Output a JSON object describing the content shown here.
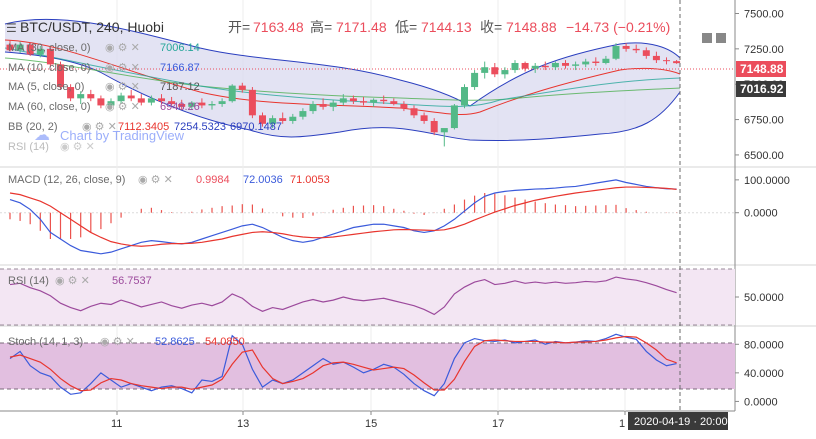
{
  "header": {
    "symbol": "BTC/USDT, 240, Huobi",
    "open_label": "开=",
    "open": "7163.48",
    "high_label": "高=",
    "high": "7171.48",
    "low_label": "低=",
    "low": "7144.13",
    "close_label": "收=",
    "close": "7148.88",
    "change": "−14.73 (−0.21%)"
  },
  "indicators": {
    "ma30": {
      "label": "MA (30, close, 0)",
      "value": "7006.14"
    },
    "ma10": {
      "label": "MA (10, close, 0)",
      "value": "7166.87"
    },
    "ma5": {
      "label": "MA (5, close, 0)",
      "value": "7187.12"
    },
    "ma60": {
      "label": "MA (60, close, 0)",
      "value": "6948.26"
    },
    "bb": {
      "label": "BB (20, 2)",
      "basis": "7112.3405",
      "upper": "7254.5323",
      "lower": "6970.1487"
    },
    "rsi_hidden": {
      "label": "RSI (14)"
    },
    "macd": {
      "label": "MACD (12, 26, close, 9)",
      "hist": "0.9984",
      "macd": "72.0036",
      "signal": "71.0053"
    },
    "rsi": {
      "label": "RSI (14)",
      "value": "56.7537"
    },
    "stoch": {
      "label": "Stoch (14, 1, 3)",
      "k": "52.8625",
      "d": "54.0850"
    }
  },
  "watermark": "Chart by TradingView",
  "price_labels": {
    "last": "7148.88",
    "ma": "7016.92"
  },
  "time_label": "2020-04-19 · 20:00",
  "colors": {
    "up": "#53b987",
    "down": "#eb4d5c",
    "macd": "#3b5bdb",
    "signal": "#e8352e",
    "bb_fill": "#dcdcf0",
    "rsi_fill": "#f3e6f3",
    "stoch_fill": "#e2bfe0",
    "stoch_k": "#3b5bdb",
    "stoch_d": "#e8352e",
    "rsi_line": "#9c4a9c"
  },
  "chart_data": [
    {
      "type": "candlestick",
      "title": "BTC/USDT, 240, Huobi",
      "x_ticks": [
        "11",
        "13",
        "15",
        "17",
        "1"
      ],
      "y_ticks": [
        "7500.00",
        "7250.00",
        "7000.00",
        "6750.00",
        "6500.00"
      ],
      "ylim": [
        6450,
        7560
      ],
      "candles": [
        [
          7280,
          7310,
          7230,
          7240
        ],
        [
          7240,
          7300,
          7220,
          7280
        ],
        [
          7280,
          7290,
          7200,
          7210
        ],
        [
          7210,
          7270,
          7190,
          7250
        ],
        [
          7250,
          7260,
          7120,
          7140
        ],
        [
          7140,
          7160,
          6960,
          6980
        ],
        [
          6980,
          7000,
          6880,
          6900
        ],
        [
          6900,
          6950,
          6860,
          6930
        ],
        [
          6930,
          6960,
          6880,
          6900
        ],
        [
          6900,
          6920,
          6830,
          6850
        ],
        [
          6850,
          6900,
          6820,
          6880
        ],
        [
          6880,
          6940,
          6860,
          6920
        ],
        [
          6920,
          6960,
          6880,
          6900
        ],
        [
          6900,
          6930,
          6850,
          6870
        ],
        [
          6870,
          6920,
          6850,
          6900
        ],
        [
          6900,
          6930,
          6860,
          6880
        ],
        [
          6880,
          6910,
          6850,
          6860
        ],
        [
          6860,
          6890,
          6820,
          6840
        ],
        [
          6840,
          6880,
          6820,
          6870
        ],
        [
          6870,
          6900,
          6830,
          6850
        ],
        [
          6850,
          6880,
          6820,
          6860
        ],
        [
          6860,
          6900,
          6840,
          6880
        ],
        [
          6880,
          7000,
          6870,
          6990
        ],
        [
          6990,
          7010,
          6940,
          6960
        ],
        [
          6960,
          6980,
          6760,
          6780
        ],
        [
          6780,
          6800,
          6700,
          6720
        ],
        [
          6720,
          6780,
          6690,
          6760
        ],
        [
          6760,
          6800,
          6720,
          6740
        ],
        [
          6740,
          6790,
          6720,
          6770
        ],
        [
          6770,
          6830,
          6750,
          6810
        ],
        [
          6810,
          6880,
          6790,
          6860
        ],
        [
          6860,
          6900,
          6820,
          6840
        ],
        [
          6840,
          6890,
          6810,
          6870
        ],
        [
          6870,
          6930,
          6850,
          6900
        ],
        [
          6900,
          6920,
          6860,
          6880
        ],
        [
          6880,
          6910,
          6850,
          6870
        ],
        [
          6870,
          6900,
          6840,
          6890
        ],
        [
          6890,
          6920,
          6860,
          6880
        ],
        [
          6880,
          6900,
          6850,
          6860
        ],
        [
          6860,
          6880,
          6810,
          6830
        ],
        [
          6830,
          6850,
          6760,
          6780
        ],
        [
          6780,
          6800,
          6720,
          6740
        ],
        [
          6740,
          6760,
          6640,
          6660
        ],
        [
          6660,
          6680,
          6560,
          6690
        ],
        [
          6690,
          6860,
          6680,
          6850
        ],
        [
          6850,
          7000,
          6830,
          6980
        ],
        [
          6980,
          7100,
          6960,
          7080
        ],
        [
          7080,
          7160,
          7040,
          7120
        ],
        [
          7120,
          7150,
          7050,
          7070
        ],
        [
          7070,
          7120,
          7040,
          7100
        ],
        [
          7100,
          7170,
          7080,
          7150
        ],
        [
          7150,
          7160,
          7090,
          7110
        ],
        [
          7110,
          7150,
          7080,
          7130
        ],
        [
          7130,
          7160,
          7100,
          7120
        ],
        [
          7120,
          7160,
          7100,
          7150
        ],
        [
          7150,
          7170,
          7110,
          7130
        ],
        [
          7130,
          7160,
          7100,
          7140
        ],
        [
          7140,
          7180,
          7120,
          7160
        ],
        [
          7160,
          7190,
          7130,
          7150
        ],
        [
          7150,
          7200,
          7140,
          7180
        ],
        [
          7180,
          7290,
          7170,
          7270
        ],
        [
          7270,
          7290,
          7230,
          7250
        ],
        [
          7250,
          7280,
          7220,
          7240
        ],
        [
          7240,
          7260,
          7180,
          7200
        ],
        [
          7200,
          7230,
          7150,
          7170
        ],
        [
          7170,
          7190,
          7140,
          7163
        ],
        [
          7163,
          7171,
          7144,
          7149
        ]
      ]
    },
    {
      "type": "line",
      "title": "MACD (12, 26, close, 9)",
      "y_ticks": [
        "100.0000",
        "0.0000"
      ],
      "ylim": [
        -150,
        130
      ],
      "series": [
        {
          "name": "MACD",
          "values": [
            40,
            30,
            10,
            -20,
            -60,
            -80,
            -100,
            -115,
            -120,
            -125,
            -120,
            -110,
            -100,
            -90,
            -85,
            -88,
            -92,
            -95,
            -90,
            -80,
            -70,
            -60,
            -50,
            -40,
            -35,
            -45,
            -60,
            -75,
            -85,
            -90,
            -85,
            -75,
            -65,
            -55,
            -45,
            -40,
            -35,
            -35,
            -40,
            -45,
            -55,
            -60,
            -55,
            -40,
            -20,
            5,
            30,
            50,
            60,
            65,
            68,
            70,
            72,
            73,
            75,
            78,
            80,
            85,
            90,
            95,
            100,
            92,
            86,
            80,
            76,
            73,
            72
          ]
        },
        {
          "name": "Signal",
          "values": [
            60,
            55,
            45,
            35,
            20,
            0,
            -20,
            -40,
            -60,
            -75,
            -88,
            -95,
            -100,
            -102,
            -100,
            -96,
            -94,
            -94,
            -93,
            -90,
            -85,
            -80,
            -72,
            -66,
            -60,
            -58,
            -60,
            -64,
            -70,
            -74,
            -76,
            -76,
            -74,
            -70,
            -66,
            -62,
            -58,
            -55,
            -52,
            -51,
            -52,
            -53,
            -54,
            -52,
            -45,
            -35,
            -22,
            -10,
            2,
            12,
            22,
            30,
            38,
            44,
            50,
            55,
            60,
            64,
            68,
            72,
            76,
            78,
            78,
            77,
            76,
            74,
            71
          ]
        }
      ],
      "histogram": [
        -20,
        -25,
        -35,
        -55,
        -80,
        -80,
        -80,
        -75,
        -60,
        -50,
        -32,
        -15,
        0,
        12,
        15,
        8,
        2,
        -1,
        3,
        10,
        15,
        20,
        22,
        26,
        25,
        13,
        0,
        -11,
        -15,
        -16,
        -9,
        1,
        9,
        15,
        21,
        22,
        23,
        20,
        12,
        6,
        -3,
        -7,
        -1,
        12,
        25,
        40,
        52,
        60,
        58,
        53,
        46,
        40,
        34,
        29,
        25,
        23,
        20,
        21,
        22,
        23,
        24,
        14,
        8,
        3,
        0,
        -1,
        1
      ]
    },
    {
      "type": "line",
      "title": "RSI (14)",
      "y_ticks": [
        "50.0000"
      ],
      "ylim": [
        5,
        95
      ],
      "series": [
        {
          "name": "RSI",
          "values": [
            70,
            72,
            65,
            60,
            52,
            40,
            33,
            28,
            35,
            40,
            38,
            45,
            40,
            34,
            38,
            42,
            36,
            32,
            37,
            40,
            36,
            42,
            55,
            48,
            35,
            27,
            33,
            30,
            36,
            42,
            46,
            42,
            45,
            50,
            46,
            44,
            46,
            48,
            44,
            40,
            36,
            30,
            22,
            34,
            55,
            66,
            74,
            78,
            70,
            72,
            76,
            72,
            74,
            72,
            74,
            72,
            73,
            75,
            74,
            76,
            82,
            79,
            77,
            73,
            68,
            62,
            57
          ]
        }
      ]
    },
    {
      "type": "line",
      "title": "Stoch (14, 1, 3)",
      "y_ticks": [
        "80.0000",
        "40.0000",
        "0.0000"
      ],
      "ylim": [
        -5,
        100
      ],
      "series": [
        {
          "name": "%K",
          "values": [
            60,
            70,
            50,
            40,
            35,
            20,
            10,
            12,
            25,
            40,
            30,
            20,
            25,
            20,
            15,
            20,
            22,
            18,
            12,
            30,
            28,
            35,
            92,
            80,
            45,
            20,
            30,
            25,
            30,
            40,
            50,
            60,
            52,
            55,
            48,
            40,
            45,
            52,
            48,
            38,
            25,
            15,
            8,
            25,
            60,
            82,
            88,
            85,
            84,
            86,
            82,
            84,
            86,
            80,
            84,
            82,
            83,
            85,
            84,
            88,
            94,
            90,
            87,
            70,
            58,
            50,
            53
          ]
        },
        {
          "name": "%D",
          "values": [
            62,
            65,
            60,
            55,
            45,
            32,
            22,
            15,
            16,
            26,
            32,
            30,
            25,
            22,
            20,
            18,
            20,
            20,
            17,
            20,
            23,
            31,
            52,
            69,
            72,
            48,
            32,
            25,
            28,
            32,
            40,
            50,
            54,
            55,
            52,
            48,
            44,
            46,
            48,
            46,
            37,
            26,
            16,
            16,
            31,
            56,
            77,
            85,
            86,
            85,
            84,
            84,
            84,
            83,
            83,
            82,
            83,
            83,
            84,
            86,
            89,
            91,
            90,
            82,
            72,
            59,
            54
          ]
        }
      ]
    }
  ]
}
